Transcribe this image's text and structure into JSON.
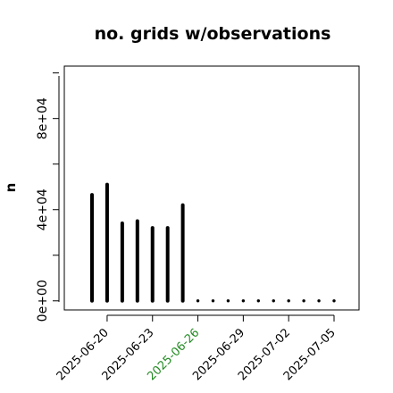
{
  "chart_data": {
    "type": "bar",
    "title": "no. grids w/observations",
    "xlabel": "",
    "ylabel": "n",
    "ylim": [
      -4000,
      103000
    ],
    "yticks": [
      0,
      20000,
      40000,
      60000,
      80000,
      100000
    ],
    "yticklabels": [
      "0e+00",
      "",
      "4e+04",
      "",
      "8e+04",
      ""
    ],
    "x": [
      "2025-06-19",
      "2025-06-20",
      "2025-06-21",
      "2025-06-22",
      "2025-06-23",
      "2025-06-24",
      "2025-06-25",
      "2025-06-26",
      "2025-06-27",
      "2025-06-28",
      "2025-06-29",
      "2025-06-30",
      "2025-07-01",
      "2025-07-02",
      "2025-07-03",
      "2025-07-04",
      "2025-07-05"
    ],
    "values": [
      46500,
      51000,
      34000,
      35000,
      32000,
      32000,
      42000,
      0,
      0,
      0,
      0,
      0,
      0,
      0,
      0,
      0,
      0
    ],
    "xticklabels": [
      {
        "date": "2025-06-20",
        "label": "2025-06-20",
        "color": "#000000"
      },
      {
        "date": "2025-06-23",
        "label": "2025-06-23",
        "color": "#000000"
      },
      {
        "date": "2025-06-26",
        "label": "2025-06-26",
        "color": "#228B22"
      },
      {
        "date": "2025-06-29",
        "label": "2025-06-29",
        "color": "#000000"
      },
      {
        "date": "2025-07-02",
        "label": "2025-07-02",
        "color": "#000000"
      },
      {
        "date": "2025-07-05",
        "label": "2025-07-05",
        "color": "#000000"
      }
    ],
    "bar_color": "#000000",
    "grid": false,
    "legend": "none"
  }
}
